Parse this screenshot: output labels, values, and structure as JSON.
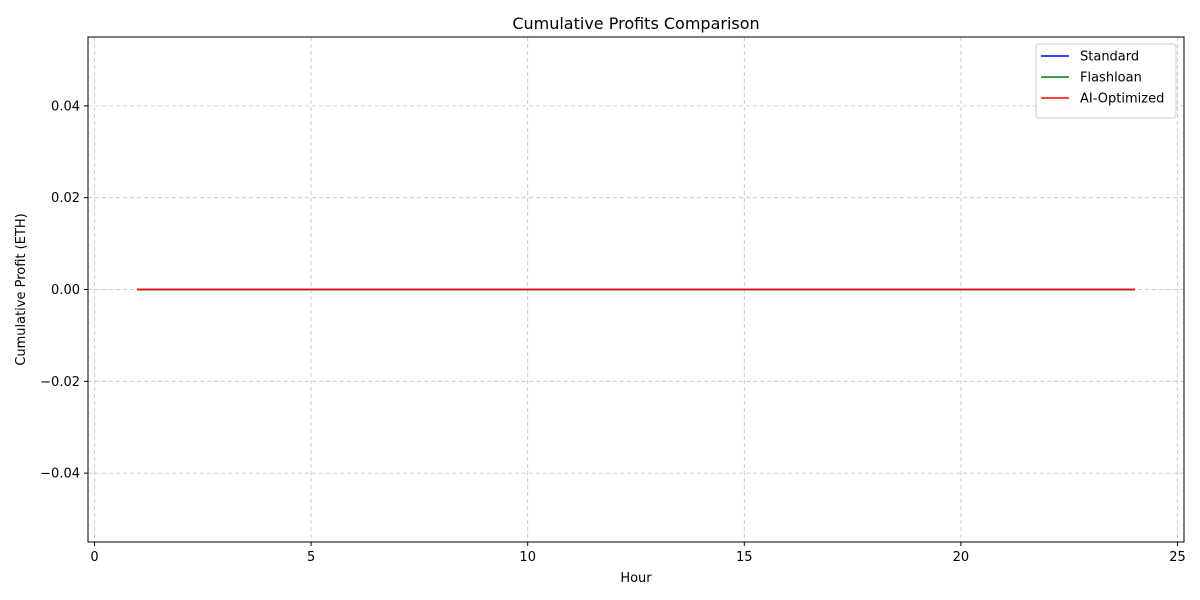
{
  "chart_data": {
    "type": "line",
    "title": "Cumulative Profits Comparison",
    "xlabel": "Hour",
    "ylabel": "Cumulative Profit (ETH)",
    "xlim": [
      -0.15,
      25.15
    ],
    "ylim": [
      -0.055,
      0.055
    ],
    "x_ticks": [
      0,
      5,
      10,
      15,
      20,
      25
    ],
    "x_tick_labels": [
      "0",
      "5",
      "10",
      "15",
      "20",
      "25"
    ],
    "y_ticks": [
      -0.04,
      -0.02,
      0.0,
      0.02,
      0.04
    ],
    "y_tick_labels": [
      "−0.04",
      "−0.02",
      "0.00",
      "0.02",
      "0.04"
    ],
    "grid": true,
    "legend_position": "top-right",
    "x": [
      1,
      2,
      3,
      4,
      5,
      6,
      7,
      8,
      9,
      10,
      11,
      12,
      13,
      14,
      15,
      16,
      17,
      18,
      19,
      20,
      21,
      22,
      23,
      24
    ],
    "series": [
      {
        "name": "Standard",
        "color": "#0000ff",
        "values": [
          0,
          0,
          0,
          0,
          0,
          0,
          0,
          0,
          0,
          0,
          0,
          0,
          0,
          0,
          0,
          0,
          0,
          0,
          0,
          0,
          0,
          0,
          0,
          0
        ]
      },
      {
        "name": "Flashloan",
        "color": "#008000",
        "values": [
          0,
          0,
          0,
          0,
          0,
          0,
          0,
          0,
          0,
          0,
          0,
          0,
          0,
          0,
          0,
          0,
          0,
          0,
          0,
          0,
          0,
          0,
          0,
          0
        ]
      },
      {
        "name": "AI-Optimized",
        "color": "#ff0000",
        "values": [
          0,
          0,
          0,
          0,
          0,
          0,
          0,
          0,
          0,
          0,
          0,
          0,
          0,
          0,
          0,
          0,
          0,
          0,
          0,
          0,
          0,
          0,
          0,
          0
        ]
      }
    ]
  }
}
